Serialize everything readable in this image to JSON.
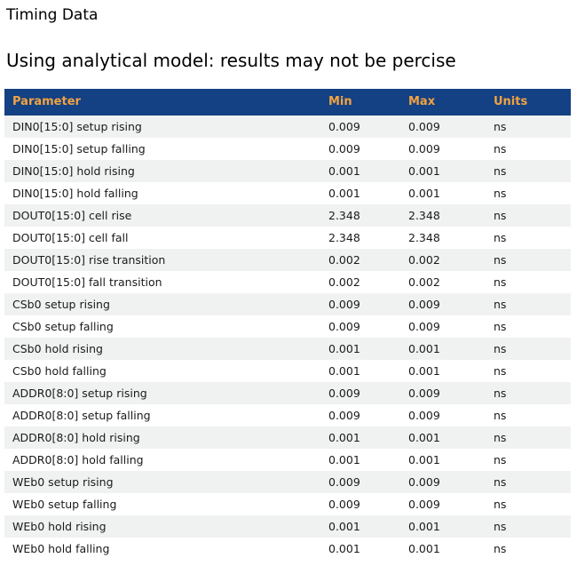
{
  "page": {
    "title": "Timing Data",
    "subtitle": "Using analytical model: results may not be percise"
  },
  "colors": {
    "header_bg": "#134183",
    "header_text": "#F2A341",
    "row_alt_bg": "#F0F1F1",
    "row_bg": "#FFFFFF",
    "row_text": "#1A1A1A"
  },
  "table": {
    "columns": [
      "Parameter",
      "Min",
      "Max",
      "Units"
    ],
    "rows": [
      [
        "DIN0[15:0] setup rising",
        "0.009",
        "0.009",
        "ns"
      ],
      [
        "DIN0[15:0] setup falling",
        "0.009",
        "0.009",
        "ns"
      ],
      [
        "DIN0[15:0] hold rising",
        "0.001",
        "0.001",
        "ns"
      ],
      [
        "DIN0[15:0] hold falling",
        "0.001",
        "0.001",
        "ns"
      ],
      [
        "DOUT0[15:0] cell rise",
        "2.348",
        "2.348",
        "ns"
      ],
      [
        "DOUT0[15:0] cell fall",
        "2.348",
        "2.348",
        "ns"
      ],
      [
        "DOUT0[15:0] rise transition",
        "0.002",
        "0.002",
        "ns"
      ],
      [
        "DOUT0[15:0] fall transition",
        "0.002",
        "0.002",
        "ns"
      ],
      [
        "CSb0 setup rising",
        "0.009",
        "0.009",
        "ns"
      ],
      [
        "CSb0 setup falling",
        "0.009",
        "0.009",
        "ns"
      ],
      [
        "CSb0 hold rising",
        "0.001",
        "0.001",
        "ns"
      ],
      [
        "CSb0 hold falling",
        "0.001",
        "0.001",
        "ns"
      ],
      [
        "ADDR0[8:0] setup rising",
        "0.009",
        "0.009",
        "ns"
      ],
      [
        "ADDR0[8:0] setup falling",
        "0.009",
        "0.009",
        "ns"
      ],
      [
        "ADDR0[8:0] hold rising",
        "0.001",
        "0.001",
        "ns"
      ],
      [
        "ADDR0[8:0] hold falling",
        "0.001",
        "0.001",
        "ns"
      ],
      [
        "WEb0 setup rising",
        "0.009",
        "0.009",
        "ns"
      ],
      [
        "WEb0 setup falling",
        "0.009",
        "0.009",
        "ns"
      ],
      [
        "WEb0 hold rising",
        "0.001",
        "0.001",
        "ns"
      ],
      [
        "WEb0 hold falling",
        "0.001",
        "0.001",
        "ns"
      ]
    ]
  }
}
